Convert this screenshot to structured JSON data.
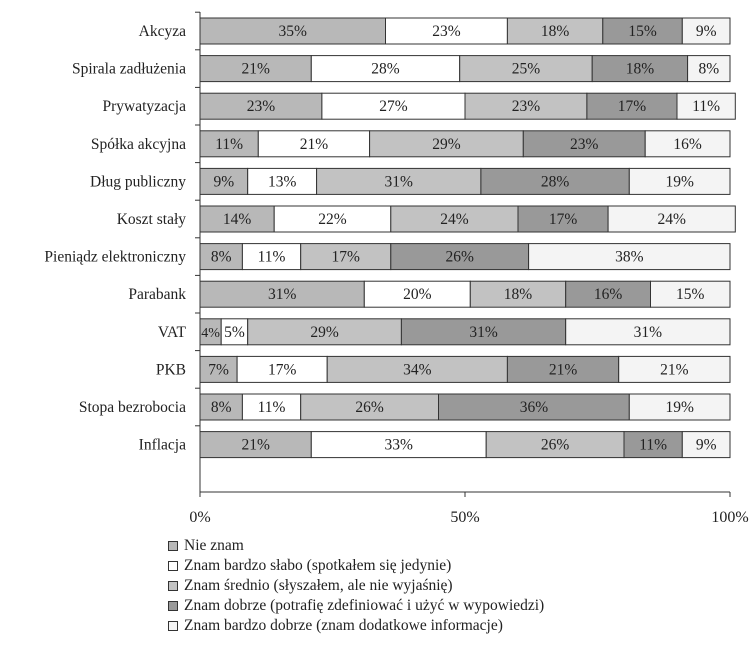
{
  "chart_data": {
    "type": "bar",
    "orientation": "horizontal",
    "stacked": true,
    "categories": [
      "Akcyza",
      "Spirala zadłużenia",
      "Prywatyzacja",
      "Spółka akcyjna",
      "Dług publiczny",
      "Koszt stały",
      "Pieniądz elektroniczny",
      "Parabank",
      "VAT",
      "PKB",
      "Stopa bezrobocia",
      "Inflacja"
    ],
    "series": [
      {
        "name": "Nie znam",
        "color": "#b8b8b8",
        "values": [
          35,
          21,
          23,
          11,
          9,
          14,
          8,
          31,
          4,
          7,
          8,
          21
        ]
      },
      {
        "name": "Znam bardzo słabo (spotkałem się jedynie)",
        "color": "#ffffff",
        "values": [
          23,
          28,
          27,
          21,
          13,
          22,
          11,
          20,
          5,
          17,
          11,
          33
        ]
      },
      {
        "name": "Znam średnio (słyszałem, ale nie wyjaśnię)",
        "color": "#c2c2c2",
        "values": [
          18,
          25,
          23,
          29,
          31,
          24,
          17,
          18,
          29,
          34,
          26,
          26
        ]
      },
      {
        "name": "Znam dobrze (potrafię zdefiniować i użyć w wypowiedzi)",
        "color": "#999999",
        "values": [
          15,
          18,
          17,
          23,
          28,
          17,
          26,
          16,
          31,
          21,
          36,
          11
        ]
      },
      {
        "name": "Znam bardzo dobrze (znam dodatkowe informacje)",
        "color": "#f4f4f4",
        "values": [
          9,
          8,
          11,
          16,
          19,
          24,
          38,
          15,
          31,
          21,
          19,
          9
        ]
      }
    ],
    "value_suffix": "%",
    "xlim": [
      0,
      100
    ],
    "xticks": [
      "0%",
      "50%",
      "100%"
    ],
    "legend_position": "bottom",
    "grid": false
  }
}
